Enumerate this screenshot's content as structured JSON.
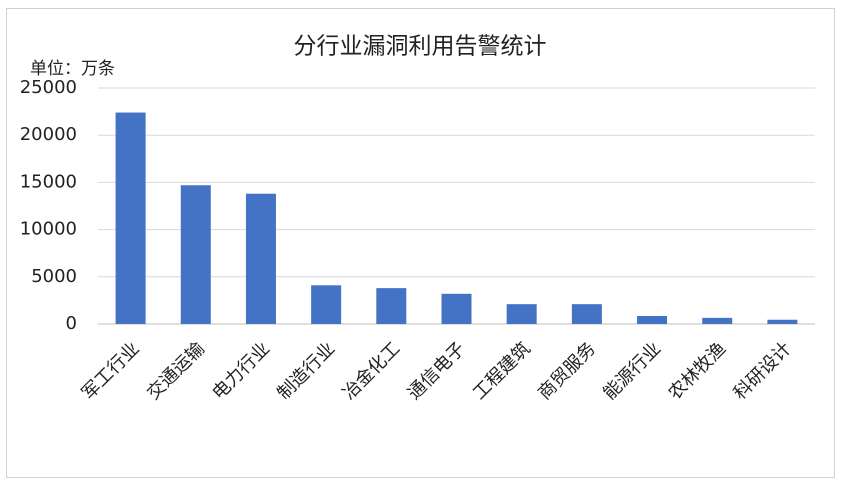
{
  "chart_data": {
    "type": "bar",
    "title": "分行业漏洞利用告警统计",
    "y_unit_label": "单位：万条",
    "categories": [
      "军工行业",
      "交通运输",
      "电力行业",
      "制造行业",
      "冶金化工",
      "通信电子",
      "工程建筑",
      "商贸服务",
      "能源行业",
      "农林牧渔",
      "科研设计"
    ],
    "values": [
      22400,
      14700,
      13800,
      4100,
      3800,
      3200,
      2100,
      2100,
      850,
      650,
      450
    ],
    "color": "#4472c4",
    "ylim": [
      0,
      25000
    ],
    "yticks": [
      0,
      5000,
      10000,
      15000,
      20000,
      25000
    ],
    "grid": true
  }
}
